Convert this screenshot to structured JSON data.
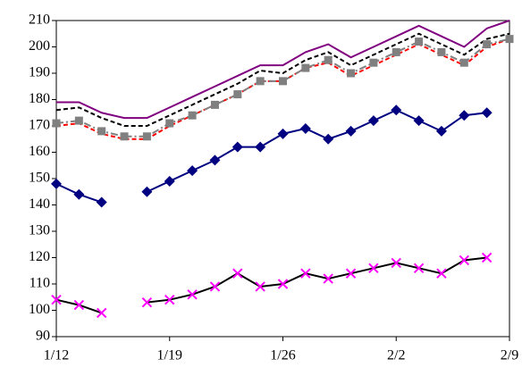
{
  "chart_data": {
    "type": "line",
    "categories": [
      "1/12",
      null,
      null,
      null,
      null,
      "1/19",
      null,
      null,
      null,
      null,
      "1/26",
      null,
      null,
      null,
      null,
      "2/2",
      null,
      null,
      null,
      null,
      "2/9"
    ],
    "ylim": [
      90,
      210
    ],
    "yticks": [
      90,
      100,
      110,
      120,
      130,
      140,
      150,
      160,
      170,
      180,
      190,
      200,
      210
    ],
    "series": [
      {
        "color": "#800080",
        "dash": "solid",
        "marker": "none",
        "values": [
          179,
          179,
          175,
          173,
          173,
          177,
          181,
          185,
          189,
          193,
          193,
          198,
          201,
          196,
          200,
          204,
          208,
          204,
          200,
          207,
          210
        ]
      },
      {
        "color": "#000000",
        "dash": "dashed",
        "marker": "none",
        "values": [
          176,
          177,
          173,
          170,
          170,
          174,
          178,
          182,
          186,
          191,
          190,
          195,
          198,
          193,
          197,
          201,
          205,
          201,
          197,
          203,
          205
        ]
      },
      {
        "color": "#ff0000",
        "dash": "dashed",
        "marker": "none",
        "values": [
          170,
          171,
          167,
          165,
          165,
          170,
          174,
          178,
          182,
          187,
          187,
          192,
          194,
          189,
          193,
          197,
          201,
          197,
          193,
          200,
          203
        ]
      },
      {
        "color": "#808080",
        "dash": "dashdot",
        "marker": "square",
        "marker_color": "#808080",
        "values": [
          171,
          172,
          168,
          166,
          166,
          171,
          174,
          178,
          182,
          187,
          187,
          192,
          195,
          190,
          194,
          198,
          202,
          198,
          194,
          201,
          203
        ]
      },
      {
        "color": "#000080",
        "dash": "solid",
        "marker": "diamond",
        "marker_color": "#000080",
        "values": [
          148,
          144,
          141,
          null,
          145,
          149,
          153,
          157,
          162,
          162,
          167,
          169,
          165,
          168,
          172,
          176,
          172,
          168,
          174,
          175,
          null
        ]
      },
      {
        "color": "#000000",
        "dash": "solid",
        "marker": "x",
        "marker_color": "#ff00ff",
        "values": [
          104,
          102,
          99,
          null,
          103,
          104,
          106,
          109,
          114,
          109,
          110,
          114,
          112,
          114,
          116,
          118,
          116,
          114,
          119,
          120,
          null
        ]
      }
    ]
  }
}
